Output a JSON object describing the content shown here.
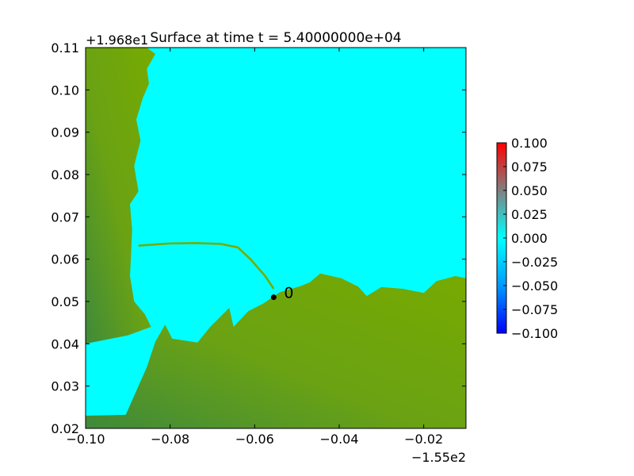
{
  "chart_data": {
    "type": "heatmap",
    "title": "Surface at time t = 5.40000000e+04",
    "xlabel": "",
    "ylabel": "",
    "x_offset_label": "−1.55e2",
    "y_offset_label": "+1.968e1",
    "xlim": [
      -0.1,
      -0.01
    ],
    "ylim": [
      0.02,
      0.11
    ],
    "x_ticks": [
      {
        "value": -0.1,
        "label": "−0.10"
      },
      {
        "value": -0.08,
        "label": "−0.08"
      },
      {
        "value": -0.06,
        "label": "−0.06"
      },
      {
        "value": -0.04,
        "label": "−0.04"
      },
      {
        "value": -0.02,
        "label": "−0.02"
      }
    ],
    "y_ticks": [
      {
        "value": 0.02,
        "label": "0.02"
      },
      {
        "value": 0.03,
        "label": "0.03"
      },
      {
        "value": 0.04,
        "label": "0.04"
      },
      {
        "value": 0.05,
        "label": "0.05"
      },
      {
        "value": 0.06,
        "label": "0.06"
      },
      {
        "value": 0.07,
        "label": "0.07"
      },
      {
        "value": 0.08,
        "label": "0.08"
      },
      {
        "value": 0.09,
        "label": "0.09"
      },
      {
        "value": 0.1,
        "label": "0.10"
      },
      {
        "value": 0.11,
        "label": "0.11"
      }
    ],
    "colorbar": {
      "range": [
        -0.1,
        0.1
      ],
      "ticks": [
        {
          "value": 0.1,
          "label": "0.100"
        },
        {
          "value": 0.075,
          "label": "0.075"
        },
        {
          "value": 0.05,
          "label": "0.050"
        },
        {
          "value": 0.025,
          "label": "0.025"
        },
        {
          "value": 0.0,
          "label": "0.000"
        },
        {
          "value": -0.025,
          "label": "−0.025"
        },
        {
          "value": -0.05,
          "label": "−0.050"
        },
        {
          "value": -0.075,
          "label": "−0.075"
        },
        {
          "value": -0.1,
          "label": "−0.100"
        }
      ],
      "colors": [
        {
          "stop": -0.1,
          "color": "#0000ff"
        },
        {
          "stop": -0.05,
          "color": "#0099ff"
        },
        {
          "stop": 0.0,
          "color": "#00ffff"
        },
        {
          "stop": 0.05,
          "color": "#808080"
        },
        {
          "stop": 0.1,
          "color": "#ff0000"
        }
      ]
    },
    "colors": {
      "water": "#00ffff",
      "land": "#77aa00",
      "land_dark": "#3f8a3a",
      "land_mid": "#5c9a26"
    },
    "gauges": [
      {
        "label": "0",
        "x": -0.0555,
        "y": 0.051
      }
    ],
    "shoreline_data": [
      [
        -0.1,
        0.023
      ],
      [
        -0.0905,
        0.0232
      ],
      [
        -0.0855,
        0.0345
      ],
      [
        -0.0835,
        0.0405
      ],
      [
        -0.0812,
        0.0445
      ],
      [
        -0.0795,
        0.0412
      ],
      [
        -0.0735,
        0.0403
      ],
      [
        -0.0705,
        0.044
      ],
      [
        -0.066,
        0.0485
      ],
      [
        -0.065,
        0.044
      ],
      [
        -0.0615,
        0.0477
      ],
      [
        -0.058,
        0.0495
      ],
      [
        -0.054,
        0.0522
      ],
      [
        -0.0495,
        0.0535
      ],
      [
        -0.047,
        0.0545
      ],
      [
        -0.0445,
        0.0566
      ],
      [
        -0.0395,
        0.0555
      ],
      [
        -0.0355,
        0.0535
      ],
      [
        -0.0335,
        0.0513
      ],
      [
        -0.03,
        0.0534
      ],
      [
        -0.025,
        0.053
      ],
      [
        -0.02,
        0.052
      ],
      [
        -0.017,
        0.0548
      ],
      [
        -0.0125,
        0.056
      ],
      [
        -0.01,
        0.0555
      ],
      [
        -0.01,
        0.02
      ],
      [
        -0.1,
        0.02
      ]
    ],
    "west_coast_data": [
      [
        -0.1,
        0.11
      ],
      [
        -0.0855,
        0.11
      ],
      [
        -0.0835,
        0.1085
      ],
      [
        -0.0855,
        0.105
      ],
      [
        -0.085,
        0.1015
      ],
      [
        -0.0865,
        0.098
      ],
      [
        -0.088,
        0.093
      ],
      [
        -0.087,
        0.088
      ],
      [
        -0.0885,
        0.082
      ],
      [
        -0.0875,
        0.076
      ],
      [
        -0.0895,
        0.073
      ],
      [
        -0.089,
        0.067
      ],
      [
        -0.0893,
        0.06
      ],
      [
        -0.0895,
        0.056
      ],
      [
        -0.0885,
        0.05
      ],
      [
        -0.086,
        0.047
      ],
      [
        -0.0845,
        0.044
      ],
      [
        -0.09,
        0.042
      ],
      [
        -0.1,
        0.04
      ]
    ]
  }
}
